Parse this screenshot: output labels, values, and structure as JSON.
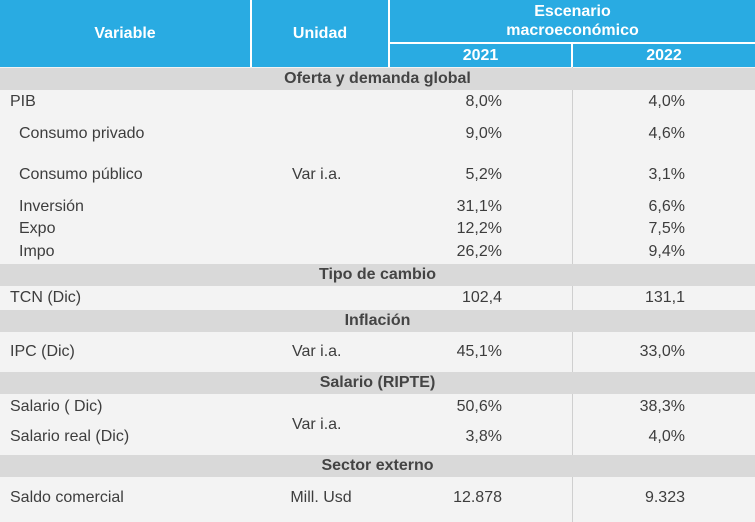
{
  "header": {
    "variable": "Variable",
    "unidad": "Unidad",
    "escenario_line1": "Escenario",
    "escenario_line2": "macroeconómico",
    "year1": "2021",
    "year2": "2022"
  },
  "sections": {
    "oferta": "Oferta y demanda global",
    "tipo_cambio": "Tipo de cambio",
    "inflacion": "Inflación",
    "salario": "Salario (RIPTE)",
    "sector_externo": "Sector externo"
  },
  "rows": {
    "pib": {
      "label": "PIB",
      "y1": "8,0%",
      "y2": "4,0%"
    },
    "consumo_privado": {
      "label": "Consumo privado",
      "y1": "9,0%",
      "y2": "4,6%"
    },
    "consumo_publico": {
      "label": "Consumo público",
      "y1": "5,2%",
      "y2": "3,1%"
    },
    "inversion": {
      "label": "Inversión",
      "y1": "31,1%",
      "y2": "6,6%"
    },
    "expo": {
      "label": "Expo",
      "y1": "12,2%",
      "y2": "7,5%"
    },
    "impo": {
      "label": "Impo",
      "y1": "26,2%",
      "y2": "9,4%"
    },
    "tcn": {
      "label": "TCN (Dic)",
      "y1": "102,4",
      "y2": "131,1"
    },
    "ipc": {
      "label": "IPC (Dic)",
      "y1": "45,1%",
      "y2": "33,0%"
    },
    "salario": {
      "label": "Salario ( Dic)",
      "y1": "50,6%",
      "y2": "38,3%"
    },
    "salario_real": {
      "label": "Salario real (Dic)",
      "y1": "3,8%",
      "y2": "4,0%"
    },
    "saldo_comercial": {
      "label": "Saldo comercial",
      "y1": "12.878",
      "y2": "9.323"
    }
  },
  "units": {
    "oferta": "Var i.a.",
    "ipc": "Var i.a.",
    "salario": "Var i.a.",
    "saldo_comercial": "Mill. Usd"
  }
}
